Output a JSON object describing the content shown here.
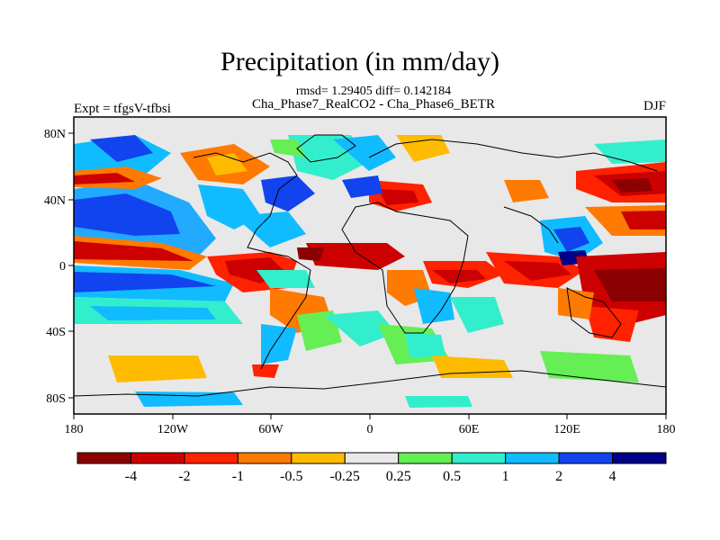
{
  "title": "Precipitation (in mm/day)",
  "stats_line": "rmsd= 1.29405 diff= 0.142184",
  "experiment": "Cha_Phase7_RealCO2 - Cha_Phase6_BETR",
  "expt_label": "Expt = tfgsV-tfbsi",
  "season": "DJF",
  "axes": {
    "x_ticks": [
      "180",
      "120W",
      "60W",
      "0",
      "60E",
      "120E",
      "180"
    ],
    "y_ticks": [
      "80N",
      "40N",
      "0",
      "40S",
      "80S"
    ]
  },
  "colorbar": {
    "labels": [
      "-4",
      "-2",
      "-1",
      "-0.5",
      "-0.25",
      "0.25",
      "0.5",
      "1",
      "2",
      "4"
    ],
    "colors": [
      "#8b0000",
      "#cc0000",
      "#ff2200",
      "#ff7a00",
      "#ffbb00",
      "#e8e8e8",
      "#66ee55",
      "#33eecc",
      "#11bbff",
      "#1144ee",
      "#000088"
    ]
  }
}
